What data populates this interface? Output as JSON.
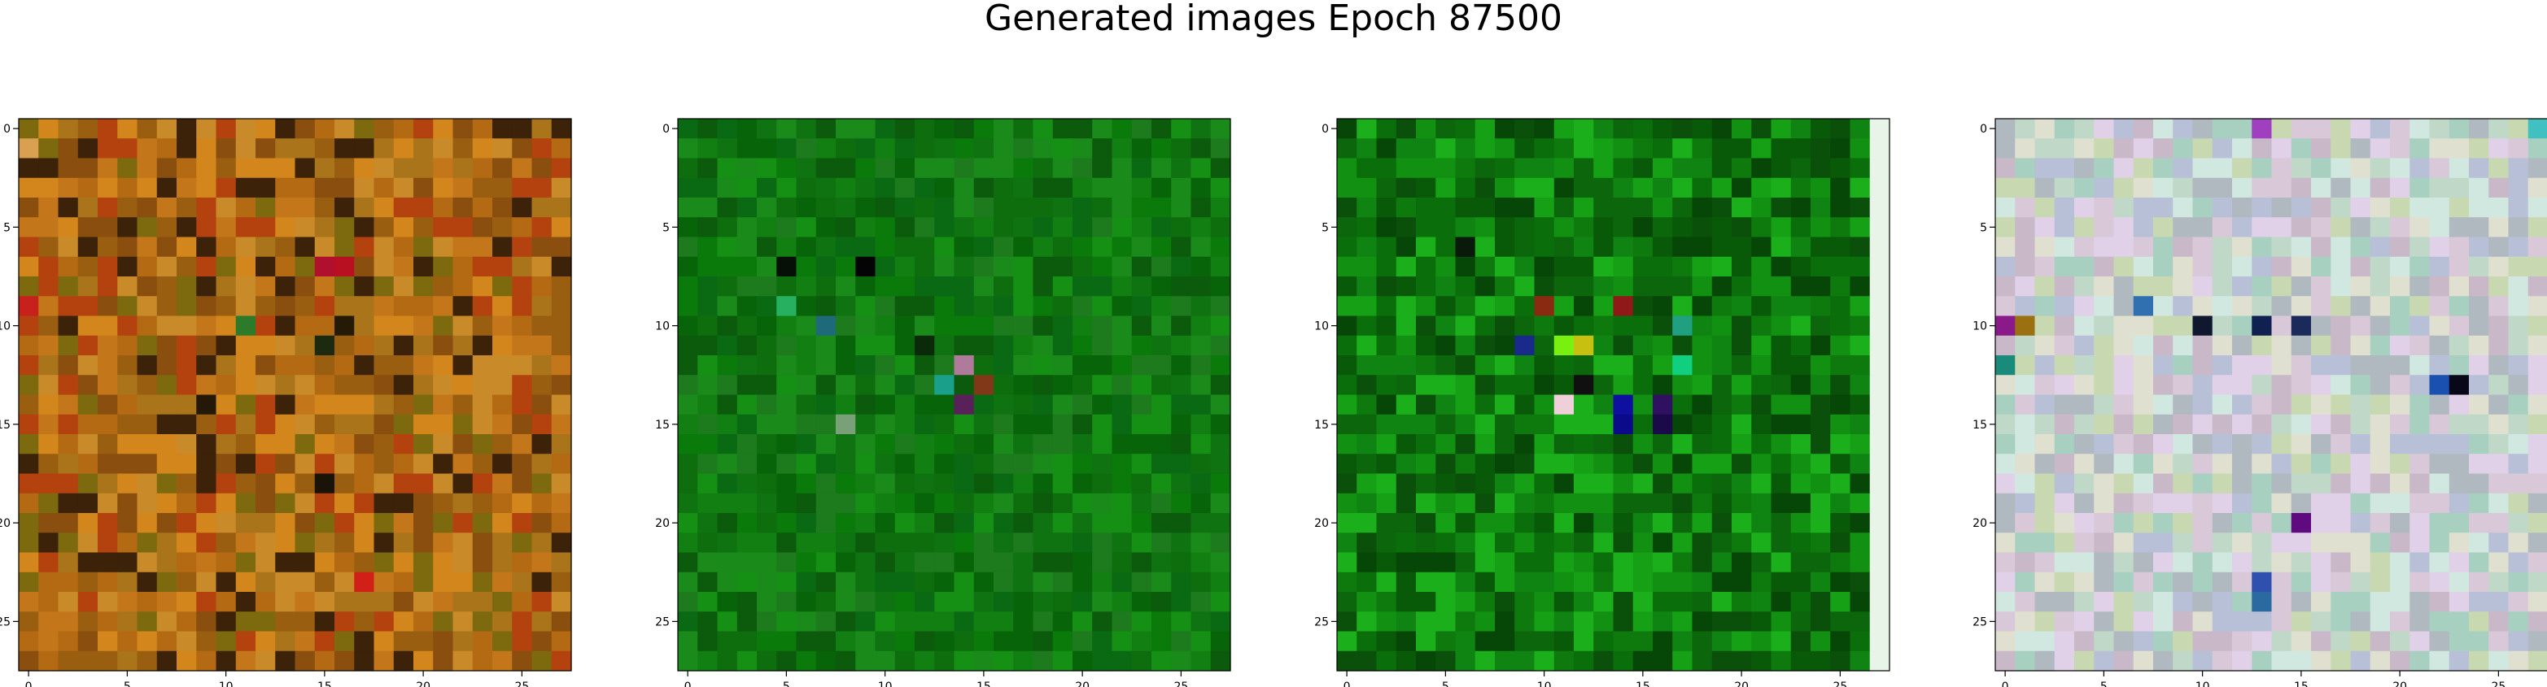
{
  "figure": {
    "title": "Generated images Epoch 87500"
  },
  "chart_data": [
    {
      "type": "heatmap",
      "title": "",
      "xlabel": "",
      "ylabel": "",
      "grid": false,
      "rows": 28,
      "cols": 28,
      "xlim": [
        -0.5,
        27.5
      ],
      "ylim": [
        27.5,
        -0.5
      ],
      "x_ticks": [
        0,
        5,
        10,
        15,
        20,
        25
      ],
      "y_ticks": [
        0,
        5,
        10,
        15,
        20,
        25
      ],
      "x_tick_labels": [
        "0",
        "5",
        "10",
        "15",
        "20",
        "25"
      ],
      "y_tick_labels": [
        "0",
        "5",
        "10",
        "15",
        "20",
        "25"
      ],
      "palette": [
        "#b36a12",
        "#c4761a",
        "#9a5e10",
        "#d2861c",
        "#8a4f0e",
        "#c98a2a",
        "#a9741a",
        "#7d6a0e",
        "#b3420e",
        "#3b2208"
      ],
      "accents": [
        {
          "row": 1,
          "col": 0,
          "color": "#d8a050"
        },
        {
          "row": 7,
          "col": 15,
          "color": "#b0102e"
        },
        {
          "row": 7,
          "col": 16,
          "color": "#b81020"
        },
        {
          "row": 9,
          "col": 0,
          "color": "#c8201a"
        },
        {
          "row": 10,
          "col": 11,
          "color": "#2d7a2a"
        },
        {
          "row": 10,
          "col": 16,
          "color": "#241a06"
        },
        {
          "row": 11,
          "col": 15,
          "color": "#1c2a10"
        },
        {
          "row": 14,
          "col": 9,
          "color": "#241806"
        },
        {
          "row": 18,
          "col": 15,
          "color": "#1a1408"
        },
        {
          "row": 23,
          "col": 17,
          "color": "#d02018"
        }
      ]
    },
    {
      "type": "heatmap",
      "title": "",
      "xlabel": "",
      "ylabel": "",
      "grid": false,
      "rows": 28,
      "cols": 28,
      "xlim": [
        -0.5,
        27.5
      ],
      "ylim": [
        27.5,
        -0.5
      ],
      "x_ticks": [
        0,
        5,
        10,
        15,
        20,
        25
      ],
      "y_ticks": [
        0,
        5,
        10,
        15,
        20,
        25
      ],
      "x_tick_labels": [
        "0",
        "5",
        "10",
        "15",
        "20",
        "25"
      ],
      "y_tick_labels": [
        "0",
        "5",
        "10",
        "15",
        "20",
        "25"
      ],
      "palette": [
        "#0a7a0a",
        "#0e6e0e",
        "#127f12",
        "#086408",
        "#1a8a1a",
        "#0c5a0c",
        "#0f7312",
        "#159015",
        "#0a6a14",
        "#1d7a1d"
      ],
      "accents": [
        {
          "row": 7,
          "col": 5,
          "color": "#061006"
        },
        {
          "row": 7,
          "col": 9,
          "color": "#030403"
        },
        {
          "row": 9,
          "col": 5,
          "color": "#26b060"
        },
        {
          "row": 10,
          "col": 7,
          "color": "#1e6a7a"
        },
        {
          "row": 11,
          "col": 12,
          "color": "#0a2a0a"
        },
        {
          "row": 12,
          "col": 14,
          "color": "#b07a9a"
        },
        {
          "row": 13,
          "col": 13,
          "color": "#1aa08a"
        },
        {
          "row": 14,
          "col": 14,
          "color": "#5a205a"
        },
        {
          "row": 13,
          "col": 15,
          "color": "#803818"
        },
        {
          "row": 15,
          "col": 8,
          "color": "#7aa07a"
        }
      ]
    },
    {
      "type": "heatmap",
      "title": "",
      "xlabel": "",
      "ylabel": "",
      "grid": false,
      "rows": 28,
      "cols": 28,
      "xlim": [
        -0.5,
        27.5
      ],
      "ylim": [
        27.5,
        -0.5
      ],
      "x_ticks": [
        0,
        5,
        10,
        15,
        20,
        25
      ],
      "y_ticks": [
        0,
        5,
        10,
        15,
        20,
        25
      ],
      "x_tick_labels": [
        "0",
        "5",
        "10",
        "15",
        "20",
        "25"
      ],
      "y_tick_labels": [
        "0",
        "5",
        "10",
        "15",
        "20",
        "25"
      ],
      "palette": [
        "#0a6e0a",
        "#0e7a0e",
        "#085a08",
        "#129012",
        "#0a500a",
        "#16a016",
        "#0c660c",
        "#0f8412",
        "#1bb01b",
        "#064606"
      ],
      "edge_column": {
        "col": 27,
        "color": "#e8f4e8"
      },
      "accents": [
        {
          "row": 9,
          "col": 10,
          "color": "#8a2a10"
        },
        {
          "row": 9,
          "col": 14,
          "color": "#901818"
        },
        {
          "row": 11,
          "col": 9,
          "color": "#1a2a8a"
        },
        {
          "row": 11,
          "col": 11,
          "color": "#7af010"
        },
        {
          "row": 11,
          "col": 12,
          "color": "#c8c010"
        },
        {
          "row": 13,
          "col": 12,
          "color": "#101010"
        },
        {
          "row": 14,
          "col": 11,
          "color": "#f0d0d8"
        },
        {
          "row": 14,
          "col": 14,
          "color": "#1010a0"
        },
        {
          "row": 15,
          "col": 14,
          "color": "#0a0a8a"
        },
        {
          "row": 14,
          "col": 16,
          "color": "#301060"
        },
        {
          "row": 15,
          "col": 16,
          "color": "#1a0a4a"
        },
        {
          "row": 12,
          "col": 17,
          "color": "#10d080"
        },
        {
          "row": 10,
          "col": 17,
          "color": "#20a080"
        },
        {
          "row": 6,
          "col": 6,
          "color": "#0a1a0a"
        }
      ]
    },
    {
      "type": "heatmap",
      "title": "",
      "xlabel": "",
      "ylabel": "",
      "grid": false,
      "rows": 28,
      "cols": 28,
      "xlim": [
        -0.5,
        27.5
      ],
      "ylim": [
        27.5,
        -0.5
      ],
      "x_ticks": [
        0,
        5,
        10,
        15,
        20,
        25
      ],
      "y_ticks": [
        0,
        5,
        10,
        15,
        20,
        25
      ],
      "x_tick_labels": [
        "0",
        "5",
        "10",
        "15",
        "20",
        "25"
      ],
      "y_tick_labels": [
        "0",
        "5",
        "10",
        "15",
        "20",
        "25"
      ],
      "palette": [
        "#d8c8d8",
        "#c0d8c8",
        "#e0e0d0",
        "#b8c0d8",
        "#d0e8e0",
        "#c8b8c8",
        "#a8d0c0",
        "#e0d0e8",
        "#c8d8b0",
        "#b0b8c0"
      ],
      "accents": [
        {
          "row": 10,
          "col": 0,
          "color": "#8a1a8a"
        },
        {
          "row": 10,
          "col": 1,
          "color": "#9a7010"
        },
        {
          "row": 9,
          "col": 7,
          "color": "#3070b0"
        },
        {
          "row": 10,
          "col": 10,
          "color": "#101830"
        },
        {
          "row": 10,
          "col": 13,
          "color": "#102050"
        },
        {
          "row": 10,
          "col": 15,
          "color": "#1a2a5a"
        },
        {
          "row": 13,
          "col": 22,
          "color": "#1a50b0"
        },
        {
          "row": 13,
          "col": 23,
          "color": "#080818"
        },
        {
          "row": 20,
          "col": 15,
          "color": "#600a80"
        },
        {
          "row": 12,
          "col": 0,
          "color": "#1a8a7a"
        },
        {
          "row": 0,
          "col": 13,
          "color": "#a040c0"
        },
        {
          "row": 0,
          "col": 27,
          "color": "#40c0c0"
        },
        {
          "row": 23,
          "col": 13,
          "color": "#3050b0"
        },
        {
          "row": 24,
          "col": 13,
          "color": "#2a6aa0"
        }
      ]
    }
  ]
}
